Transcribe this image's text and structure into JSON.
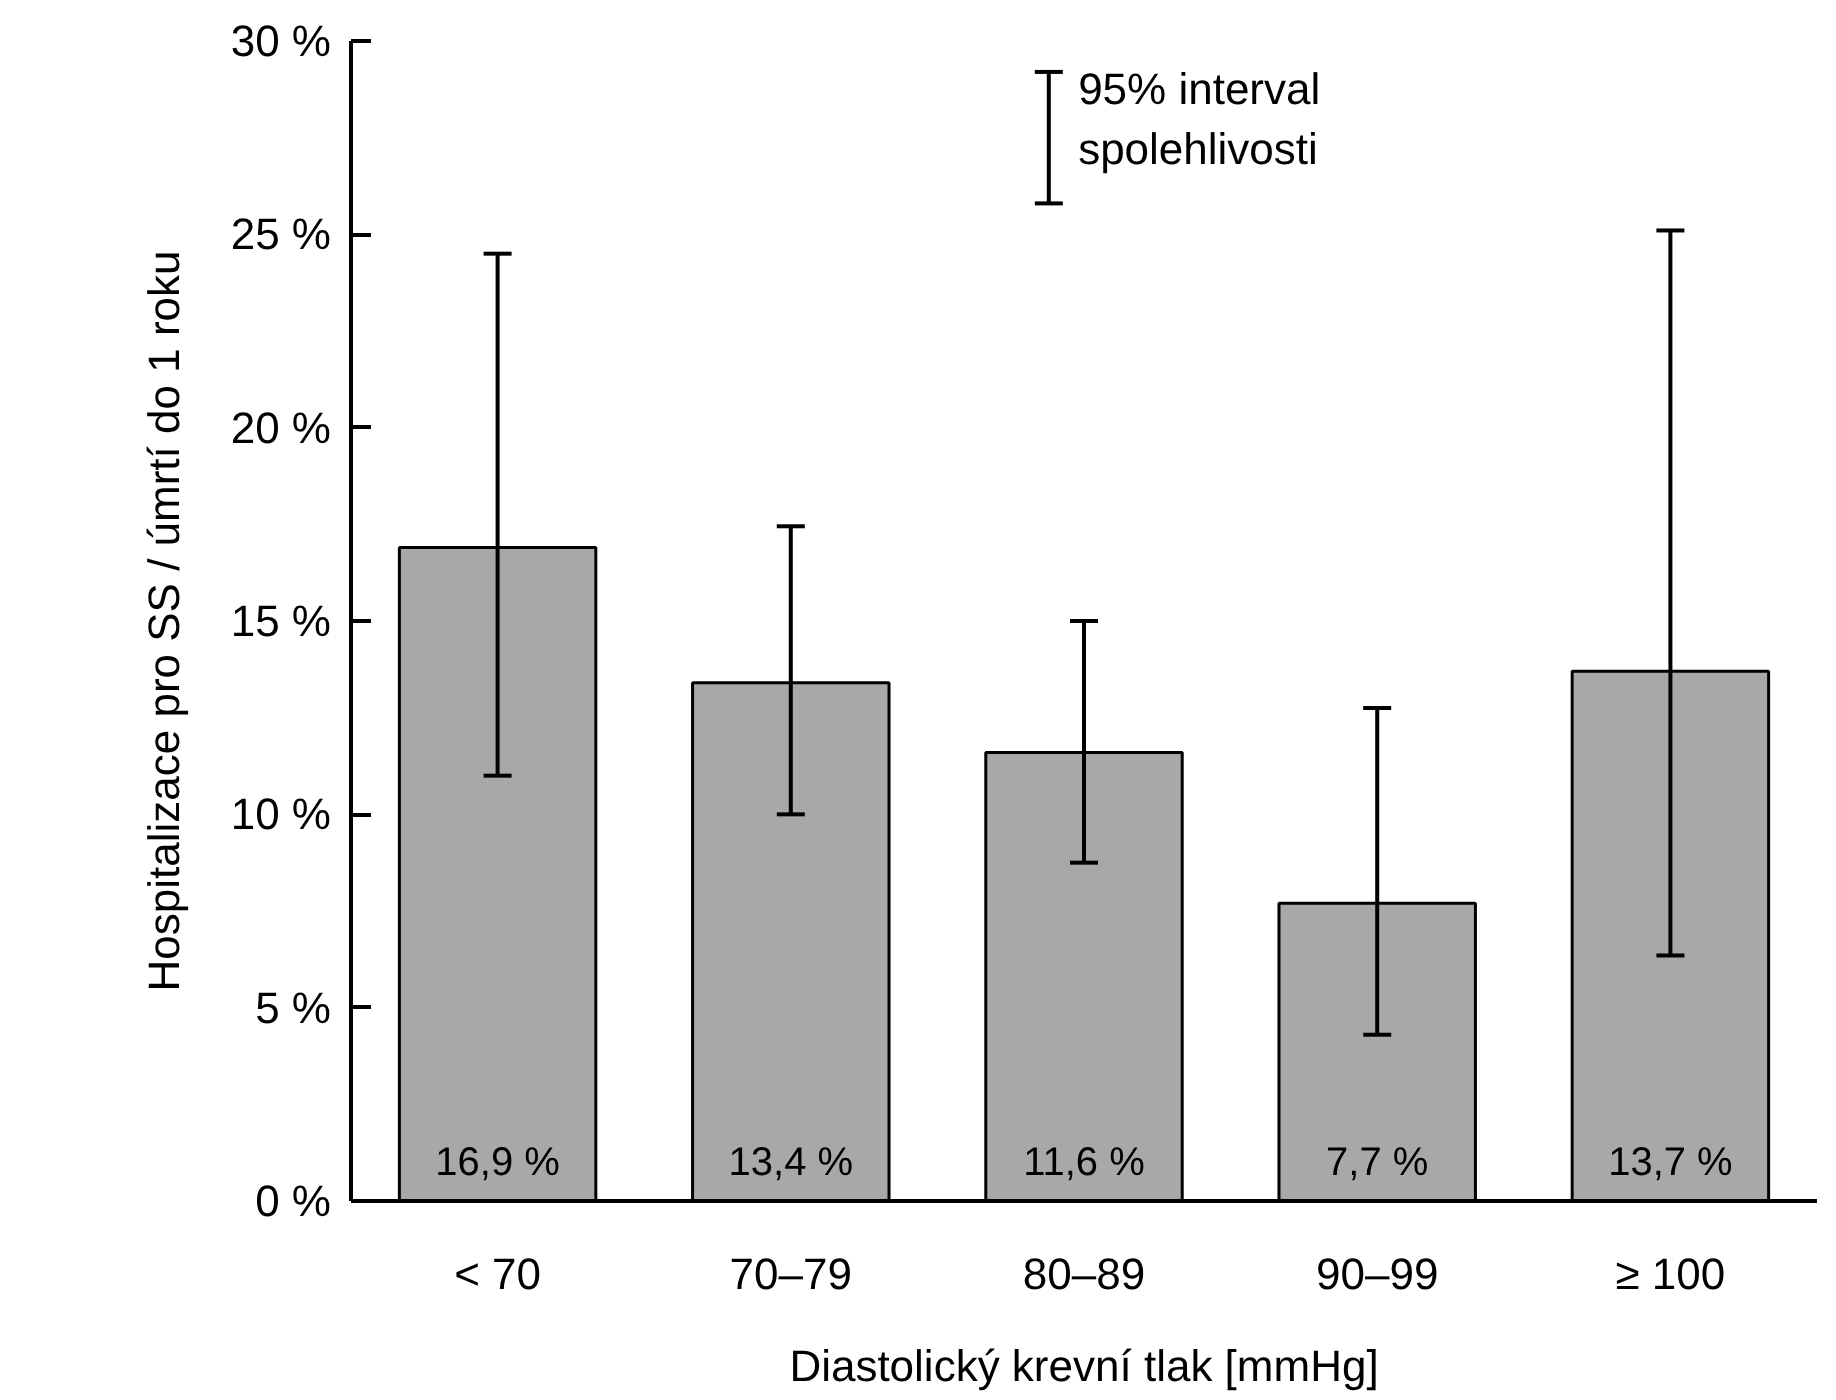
{
  "chart_data": {
    "type": "bar",
    "xlabel": "Diastolický krevní tlak [mmHg]",
    "ylabel": "Hospitalizace pro SS / úmrtí do 1 roku",
    "categories": [
      "< 70",
      "70–79",
      "80–89",
      "90–99",
      "≥ 100"
    ],
    "values": [
      16.9,
      13.4,
      11.6,
      7.7,
      13.7
    ],
    "value_labels": [
      "16,9 %",
      "13,4 %",
      "11,6 %",
      "7,7 %",
      "13,7 %"
    ],
    "errors": [
      [
        11.0,
        24.5
      ],
      [
        10.0,
        17.45
      ],
      [
        8.75,
        15.0
      ],
      [
        4.3,
        12.75
      ],
      [
        6.35,
        25.1
      ]
    ],
    "color": "#a8a8a8",
    "ylim": [
      0,
      30
    ],
    "yticks": [
      {
        "value": 0,
        "label": "0 %"
      },
      {
        "value": 5,
        "label": "5 %"
      },
      {
        "value": 10,
        "label": "10 %"
      },
      {
        "value": 15,
        "label": "15 %"
      },
      {
        "value": 20,
        "label": "20 %"
      },
      {
        "value": 25,
        "label": "25 %"
      },
      {
        "value": 30,
        "label": "30 %"
      }
    ],
    "annotations": [
      "95% interval\nspolehlivosti"
    ],
    "grid": false
  }
}
